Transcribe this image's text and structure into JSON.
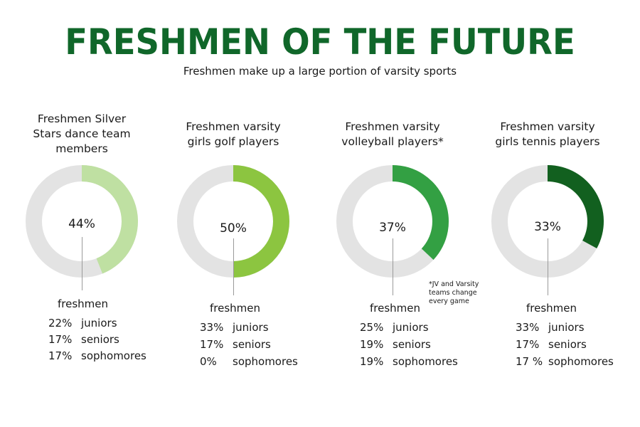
{
  "header": {
    "title": "FRESHMEN OF THE FUTURE",
    "subtitle": "Freshmen make up a large portion of varsity sports"
  },
  "colors": {
    "title": "#10672a",
    "track": "#e3e3e3",
    "dance": "#bfe0a2",
    "golf": "#8cc540",
    "volleyball": "#33a043",
    "tennis": "#12601f"
  },
  "chart_data": [
    {
      "type": "pie",
      "title": "Freshmen Silver Stars dance team members",
      "title_lines": [
        "Freshmen Silver",
        "Stars dance team",
        "members"
      ],
      "value": 44,
      "value_label": "44%",
      "highlight_label": "freshmen",
      "color": "#bfe0a2",
      "breakdown": [
        {
          "label": "juniors",
          "value": 22,
          "text": "22%"
        },
        {
          "label": "seniors",
          "value": 17,
          "text": "17%"
        },
        {
          "label": "sophomores",
          "value": 17,
          "text": "17%"
        }
      ]
    },
    {
      "type": "pie",
      "title": "Freshmen varsity girls golf players",
      "title_lines": [
        "Freshmen varsity",
        "girls golf players"
      ],
      "value": 50,
      "value_label": "50%",
      "highlight_label": "freshmen",
      "color": "#8cc540",
      "breakdown": [
        {
          "label": "juniors",
          "value": 33,
          "text": "33%"
        },
        {
          "label": "seniors",
          "value": 17,
          "text": "17%"
        },
        {
          "label": "sophomores",
          "value": 0,
          "text": "0%"
        }
      ]
    },
    {
      "type": "pie",
      "title": "Freshmen varsity volleyball players*",
      "title_lines": [
        "Freshmen varsity",
        "volleyball players*"
      ],
      "value": 37,
      "value_label": "37%",
      "highlight_label": "freshmen",
      "color": "#33a043",
      "footnote_lines": [
        "*JV and Varsity",
        "teams change",
        "every game"
      ],
      "breakdown": [
        {
          "label": "juniors",
          "value": 25,
          "text": "25%"
        },
        {
          "label": "seniors",
          "value": 19,
          "text": "19%"
        },
        {
          "label": "sophomores",
          "value": 19,
          "text": "19%"
        }
      ]
    },
    {
      "type": "pie",
      "title": "Freshmen varsity girls tennis players",
      "title_lines": [
        "Freshmen varsity",
        "girls tennis players"
      ],
      "value": 33,
      "value_label": "33%",
      "highlight_label": "freshmen",
      "color": "#12601f",
      "breakdown": [
        {
          "label": "juniors",
          "value": 33,
          "text": "33%"
        },
        {
          "label": "seniors",
          "value": 17,
          "text": "17%"
        },
        {
          "label": "sophomores",
          "value": 17,
          "text": "17 %"
        }
      ]
    }
  ]
}
